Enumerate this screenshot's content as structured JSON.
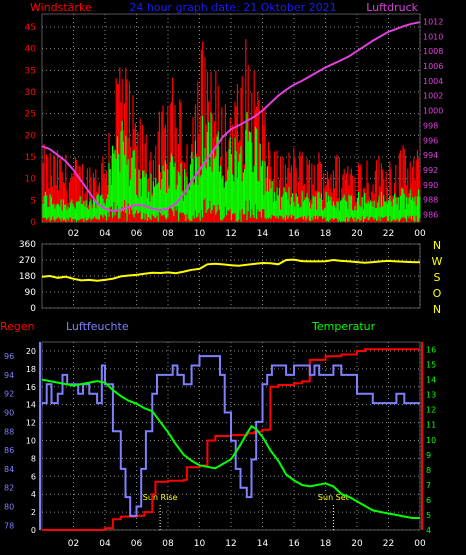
{
  "colors": {
    "background": "#000000",
    "plot_bg": "#000000",
    "grid": "#8a8a8a",
    "axis": "#ffffff",
    "wind_gust": "#ff0000",
    "wind_mean": "#00ff00",
    "pressure": "#e040e0",
    "direction": "#ffff00",
    "humidity": "#8080ff",
    "temperature": "#00ff00",
    "rain": "#ff0000",
    "title": "#1a1aff",
    "tick_text": "#ffffff"
  },
  "chart_data": [
    {
      "id": "wind-pressure",
      "type": "line",
      "title": "24 hour graph date: 21 Oktober 2021",
      "left_label": "Windstärke",
      "right_label": "Luftdruck",
      "x_ticks": [
        "02",
        "04",
        "06",
        "08",
        "10",
        "12",
        "14",
        "16",
        "18",
        "20",
        "22",
        "00"
      ],
      "x_range": [
        0,
        24
      ],
      "y_left_ticks": [
        0,
        5,
        10,
        15,
        20,
        25,
        30,
        35,
        40,
        45
      ],
      "y_left_range": [
        0,
        48
      ],
      "y_right_ticks": [
        986,
        988,
        990,
        992,
        994,
        996,
        998,
        1000,
        1002,
        1004,
        1006,
        1008,
        1010,
        1012
      ],
      "y_right_range": [
        985,
        1013
      ],
      "gust_envelope": [
        [
          0,
          14
        ],
        [
          1,
          13
        ],
        [
          2,
          12
        ],
        [
          3,
          11
        ],
        [
          4,
          14
        ],
        [
          4.5,
          26
        ],
        [
          5,
          34
        ],
        [
          5.5,
          26
        ],
        [
          6,
          20
        ],
        [
          6.5,
          18
        ],
        [
          7,
          17
        ],
        [
          7.5,
          20
        ],
        [
          8,
          23
        ],
        [
          8.5,
          28
        ],
        [
          9,
          18
        ],
        [
          9.5,
          22
        ],
        [
          10,
          32
        ],
        [
          10.5,
          36
        ],
        [
          11,
          28
        ],
        [
          11.5,
          22
        ],
        [
          12,
          24
        ],
        [
          12.5,
          26
        ],
        [
          13,
          34
        ],
        [
          13.5,
          30
        ],
        [
          14,
          22
        ],
        [
          15,
          12
        ],
        [
          16,
          14
        ],
        [
          17,
          12
        ],
        [
          18,
          14
        ],
        [
          19,
          12
        ],
        [
          20,
          13
        ],
        [
          21,
          12
        ],
        [
          22,
          13
        ],
        [
          23,
          14
        ],
        [
          24,
          13
        ]
      ],
      "mean_envelope": [
        [
          0,
          6
        ],
        [
          1,
          5
        ],
        [
          2,
          5
        ],
        [
          3,
          4
        ],
        [
          4,
          8
        ],
        [
          4.5,
          18
        ],
        [
          5,
          25
        ],
        [
          5.5,
          18
        ],
        [
          6,
          12
        ],
        [
          6.5,
          10
        ],
        [
          7,
          9
        ],
        [
          7.5,
          12
        ],
        [
          8,
          14
        ],
        [
          8.5,
          16
        ],
        [
          9,
          10
        ],
        [
          9.5,
          13
        ],
        [
          10,
          20
        ],
        [
          10.5,
          24
        ],
        [
          11,
          18
        ],
        [
          11.5,
          14
        ],
        [
          12,
          16
        ],
        [
          12.5,
          18
        ],
        [
          13,
          23
        ],
        [
          13.5,
          20
        ],
        [
          14,
          14
        ],
        [
          15,
          6
        ],
        [
          16,
          7
        ],
        [
          17,
          6
        ],
        [
          18,
          6
        ],
        [
          19,
          5
        ],
        [
          20,
          6
        ],
        [
          21,
          5
        ],
        [
          22,
          6
        ],
        [
          23,
          6
        ],
        [
          24,
          6
        ]
      ],
      "pressure": [
        [
          0,
          995.2
        ],
        [
          0.5,
          994.8
        ],
        [
          1,
          994
        ],
        [
          1.5,
          993.2
        ],
        [
          2,
          992
        ],
        [
          2.5,
          990.5
        ],
        [
          3,
          989
        ],
        [
          3.5,
          987.5
        ],
        [
          4,
          986.8
        ],
        [
          4.5,
          986.5
        ],
        [
          5,
          986.6
        ],
        [
          5.5,
          987
        ],
        [
          6,
          987.3
        ],
        [
          6.5,
          987.2
        ],
        [
          7,
          986.8
        ],
        [
          7.5,
          986.6
        ],
        [
          8,
          986.8
        ],
        [
          8.5,
          987.5
        ],
        [
          9,
          988.8
        ],
        [
          9.5,
          990.5
        ],
        [
          10,
          992
        ],
        [
          10.5,
          993.5
        ],
        [
          11,
          995
        ],
        [
          11.5,
          996.5
        ],
        [
          12,
          997.5
        ],
        [
          12.5,
          998
        ],
        [
          13,
          998.6
        ],
        [
          13.5,
          999.2
        ],
        [
          14,
          1000
        ],
        [
          14.5,
          1001
        ],
        [
          15,
          1002
        ],
        [
          15.5,
          1002.8
        ],
        [
          16,
          1003.5
        ],
        [
          16.5,
          1004
        ],
        [
          17,
          1004.6
        ],
        [
          17.5,
          1005.2
        ],
        [
          18,
          1005.8
        ],
        [
          18.5,
          1006.3
        ],
        [
          19,
          1006.8
        ],
        [
          19.5,
          1007.3
        ],
        [
          20,
          1008
        ],
        [
          20.5,
          1008.7
        ],
        [
          21,
          1009.4
        ],
        [
          21.5,
          1010
        ],
        [
          22,
          1010.6
        ],
        [
          22.5,
          1011
        ],
        [
          23,
          1011.4
        ],
        [
          23.5,
          1011.7
        ],
        [
          24,
          1011.9
        ]
      ]
    },
    {
      "id": "direction",
      "type": "line",
      "title": "",
      "x_range": [
        0,
        24
      ],
      "y_ticks": [
        0,
        90,
        180,
        270,
        360
      ],
      "y_range": [
        0,
        360
      ],
      "compass_labels": [
        "N",
        "W",
        "S",
        "O",
        "N"
      ],
      "direction": [
        [
          0,
          176
        ],
        [
          0.5,
          180
        ],
        [
          1,
          170
        ],
        [
          1.5,
          176
        ],
        [
          2,
          164
        ],
        [
          2.5,
          155
        ],
        [
          3,
          158
        ],
        [
          3.5,
          153
        ],
        [
          4,
          158
        ],
        [
          4.5,
          165
        ],
        [
          5,
          178
        ],
        [
          5.5,
          183
        ],
        [
          6,
          186
        ],
        [
          6.5,
          193
        ],
        [
          7,
          198
        ],
        [
          7.5,
          197
        ],
        [
          8,
          200
        ],
        [
          8.5,
          196
        ],
        [
          9,
          205
        ],
        [
          9.5,
          215
        ],
        [
          10,
          220
        ],
        [
          10.5,
          246
        ],
        [
          11,
          249
        ],
        [
          11.5,
          245
        ],
        [
          12,
          240
        ],
        [
          12.5,
          238
        ],
        [
          13,
          243
        ],
        [
          13.5,
          248
        ],
        [
          14,
          253
        ],
        [
          14.5,
          252
        ],
        [
          15,
          246
        ],
        [
          15.5,
          270
        ],
        [
          16,
          272
        ],
        [
          16.5,
          264
        ],
        [
          17,
          262
        ],
        [
          17.5,
          262
        ],
        [
          18,
          263
        ],
        [
          18.5,
          270
        ],
        [
          19,
          265
        ],
        [
          19.5,
          262
        ],
        [
          20,
          258
        ],
        [
          20.5,
          255
        ],
        [
          21,
          258
        ],
        [
          21.5,
          262
        ],
        [
          22,
          265
        ],
        [
          22.5,
          262
        ],
        [
          23,
          260
        ],
        [
          23.5,
          258
        ],
        [
          24,
          257
        ]
      ]
    },
    {
      "id": "rain-humidity-temperature",
      "type": "line",
      "title": "",
      "labels": {
        "rain": "Regen",
        "humidity": "Luftfeuchte",
        "temperature": "Temperatur",
        "sunrise": "Sun Rise",
        "sunset": "Sun Set"
      },
      "x_ticks": [
        "02",
        "04",
        "06",
        "08",
        "10",
        "12",
        "14",
        "16",
        "18",
        "20",
        "22",
        "00"
      ],
      "x_range": [
        0,
        24
      ],
      "humidity_ticks": [
        78,
        80,
        82,
        84,
        86,
        88,
        90,
        92,
        94,
        96
      ],
      "humidity_range": [
        77.5,
        97.5
      ],
      "rain_ticks": [
        0,
        2,
        4,
        6,
        8,
        10,
        12,
        14,
        16,
        18,
        20
      ],
      "rain_range": [
        0,
        21
      ],
      "temperature_ticks": [
        4,
        5,
        6,
        7,
        8,
        9,
        10,
        11,
        12,
        13,
        14,
        15,
        16
      ],
      "temperature_range": [
        4,
        16.5
      ],
      "sunrise_hour": 7.5,
      "sunset_hour": 18.5,
      "humidity": [
        [
          0,
          91
        ],
        [
          0.3,
          93
        ],
        [
          0.6,
          91
        ],
        [
          1,
          92
        ],
        [
          1.3,
          94
        ],
        [
          1.6,
          93
        ],
        [
          2,
          93
        ],
        [
          2.3,
          92
        ],
        [
          2.6,
          93
        ],
        [
          3,
          92
        ],
        [
          3.5,
          91
        ],
        [
          3.8,
          95
        ],
        [
          4,
          93
        ],
        [
          4.5,
          88
        ],
        [
          5,
          84
        ],
        [
          5.3,
          81
        ],
        [
          5.6,
          79
        ],
        [
          6,
          80
        ],
        [
          6.3,
          84
        ],
        [
          6.6,
          88
        ],
        [
          7,
          92
        ],
        [
          7.3,
          94
        ],
        [
          7.6,
          94
        ],
        [
          8,
          94
        ],
        [
          8.3,
          95
        ],
        [
          8.6,
          94
        ],
        [
          9,
          93
        ],
        [
          9.5,
          95
        ],
        [
          10,
          96
        ],
        [
          10.5,
          96
        ],
        [
          11,
          96
        ],
        [
          11.3,
          94
        ],
        [
          11.6,
          90
        ],
        [
          12,
          87
        ],
        [
          12.3,
          84
        ],
        [
          12.6,
          82
        ],
        [
          13,
          81
        ],
        [
          13.3,
          85
        ],
        [
          13.6,
          89
        ],
        [
          14,
          93
        ],
        [
          14.3,
          94
        ],
        [
          14.6,
          95
        ],
        [
          15,
          95
        ],
        [
          15.5,
          94
        ],
        [
          16,
          95
        ],
        [
          17,
          94
        ],
        [
          17.3,
          95
        ],
        [
          17.6,
          94
        ],
        [
          18,
          94
        ],
        [
          18.5,
          95
        ],
        [
          19,
          94
        ],
        [
          19.5,
          94
        ],
        [
          20,
          92
        ],
        [
          20.5,
          92
        ],
        [
          21,
          91
        ],
        [
          22,
          91
        ],
        [
          22.5,
          92
        ],
        [
          23,
          91
        ],
        [
          24,
          91
        ]
      ],
      "temperature": [
        [
          0,
          14
        ],
        [
          0.5,
          13.9
        ],
        [
          1,
          13.8
        ],
        [
          1.5,
          13.7
        ],
        [
          2,
          13.6
        ],
        [
          2.5,
          13.7
        ],
        [
          3,
          13.8
        ],
        [
          3.5,
          13.9
        ],
        [
          4,
          13.8
        ],
        [
          4.5,
          13.3
        ],
        [
          5,
          12.9
        ],
        [
          5.5,
          12.6
        ],
        [
          6,
          12.4
        ],
        [
          6.5,
          12.1
        ],
        [
          7,
          11.9
        ],
        [
          7.5,
          11.2
        ],
        [
          8,
          10.5
        ],
        [
          8.5,
          9.7
        ],
        [
          9,
          9.0
        ],
        [
          9.5,
          8.6
        ],
        [
          10,
          8.3
        ],
        [
          10.5,
          8.2
        ],
        [
          11,
          8.1
        ],
        [
          11.5,
          8.4
        ],
        [
          12,
          8.7
        ],
        [
          12.5,
          9.5
        ],
        [
          13,
          10.4
        ],
        [
          13.3,
          10.9
        ],
        [
          13.6,
          10.7
        ],
        [
          14,
          10.2
        ],
        [
          14.5,
          9.3
        ],
        [
          15,
          8.6
        ],
        [
          15.5,
          7.7
        ],
        [
          16,
          7.3
        ],
        [
          16.5,
          7.0
        ],
        [
          17,
          6.9
        ],
        [
          17.5,
          7.0
        ],
        [
          18,
          7.1
        ],
        [
          18.5,
          6.9
        ],
        [
          19,
          6.4
        ],
        [
          19.5,
          6.2
        ],
        [
          20,
          5.9
        ],
        [
          20.5,
          5.6
        ],
        [
          21,
          5.3
        ],
        [
          21.5,
          5.2
        ],
        [
          22,
          5.1
        ],
        [
          22.5,
          5.0
        ],
        [
          23,
          4.9
        ],
        [
          23.5,
          4.8
        ],
        [
          24,
          4.8
        ]
      ],
      "rain": [
        [
          0,
          0
        ],
        [
          1,
          0
        ],
        [
          2,
          0
        ],
        [
          3,
          0
        ],
        [
          4,
          0.2
        ],
        [
          4.5,
          1.2
        ],
        [
          5,
          1.5
        ],
        [
          6,
          1.6
        ],
        [
          6.5,
          2.0
        ],
        [
          7,
          4.0
        ],
        [
          7.2,
          5.4
        ],
        [
          8,
          5.5
        ],
        [
          9,
          5.6
        ],
        [
          9.2,
          7.0
        ],
        [
          10,
          7.2
        ],
        [
          10.5,
          10.0
        ],
        [
          11,
          10.5
        ],
        [
          12,
          10.6
        ],
        [
          13,
          10.8
        ],
        [
          13.5,
          11.0
        ],
        [
          14,
          11.2
        ],
        [
          14.5,
          16.0
        ],
        [
          15,
          16.2
        ],
        [
          16,
          16.4
        ],
        [
          16.5,
          16.6
        ],
        [
          17,
          19.0
        ],
        [
          18,
          19.4
        ],
        [
          19,
          19.6
        ],
        [
          20,
          20.0
        ],
        [
          20.5,
          20.2
        ],
        [
          24,
          20.2
        ]
      ]
    }
  ]
}
